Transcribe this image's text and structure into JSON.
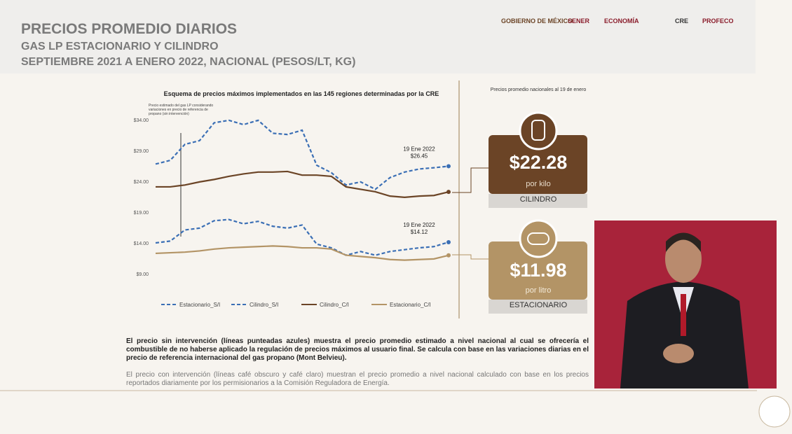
{
  "header": {
    "title": "PRECIOS PROMEDIO DIARIOS",
    "subtitle": "GAS LP ESTACIONARIO Y CILINDRO",
    "period": "SEPTIEMBRE 2021 A ENERO 2022, NACIONAL (PESOS/LT, KG)"
  },
  "logos": [
    "GOBIERNO DE MÉXICO",
    "SENER",
    "ECONOMÍA",
    "CRE",
    "PROFECO"
  ],
  "chart_data": {
    "type": "line",
    "title": "Esquema de precios máximos implementados en las 145 regiones determinadas por la CRE",
    "note": "Precio estimado del gas LP considerando variaciones en precio de referencia de propano (sin intervención)",
    "categories": [
      null,
      null,
      null,
      null,
      null,
      null,
      null,
      null,
      null,
      null,
      null,
      null,
      null,
      null,
      null,
      null,
      null,
      null,
      null,
      null,
      null
    ],
    "ylim": [
      9,
      34
    ],
    "yticks": [
      {
        "value": 9,
        "label": "$9.00"
      },
      {
        "value": 14,
        "label": "$14.00"
      },
      {
        "value": 19,
        "label": "$19.00"
      },
      {
        "value": 24,
        "label": "$24.00"
      },
      {
        "value": 29,
        "label": "$29.00"
      },
      {
        "value": 34,
        "label": "$34.00"
      }
    ],
    "series": [
      {
        "name": "Estacionario_S/I",
        "color": "#3b6fb5",
        "dashed": true,
        "values": [
          14.0,
          14.3,
          16.1,
          16.4,
          17.6,
          17.8,
          17.1,
          17.5,
          16.7,
          16.4,
          16.9,
          13.8,
          13.2,
          12.0,
          12.6,
          12.0,
          12.6,
          12.9,
          13.2,
          13.4,
          14.12
        ],
        "annotation": [
          "19 Ene 2022",
          "$14.12"
        ]
      },
      {
        "name": "Cilindro_S/I",
        "color": "#3b6fb5",
        "dashed": true,
        "values": [
          26.8,
          27.4,
          30.0,
          30.6,
          33.5,
          33.9,
          33.2,
          33.9,
          31.8,
          31.6,
          32.3,
          26.6,
          25.4,
          23.4,
          23.9,
          22.7,
          24.6,
          25.5,
          26.0,
          26.2,
          26.45
        ],
        "annotation": [
          "19 Ene 2022",
          "$26.45"
        ]
      },
      {
        "name": "Cilindro_C/I",
        "color": "#6b4426",
        "dashed": false,
        "values": [
          23.1,
          23.1,
          23.4,
          23.9,
          24.3,
          24.8,
          25.2,
          25.5,
          25.5,
          25.6,
          25.0,
          25.0,
          24.8,
          23.1,
          22.7,
          22.3,
          21.6,
          21.4,
          21.6,
          21.7,
          22.28
        ]
      },
      {
        "name": "Estacionario_C/I",
        "color": "#b39466",
        "dashed": false,
        "values": [
          12.3,
          12.4,
          12.5,
          12.7,
          13.0,
          13.2,
          13.3,
          13.4,
          13.5,
          13.4,
          13.2,
          13.2,
          13.0,
          12.0,
          11.8,
          11.6,
          11.3,
          11.2,
          11.3,
          11.4,
          11.98
        ]
      }
    ]
  },
  "summary": {
    "heading": "Precios promedio nacionales al 19 de enero",
    "boxes": [
      {
        "price": "$22.28",
        "unit": "por kilo",
        "label": "CILINDRO"
      },
      {
        "price": "$11.98",
        "unit": "por litro",
        "label": "ESTACIONARIO"
      }
    ]
  },
  "notes": [
    "El precio sin intervención (líneas punteadas azules) muestra el precio promedio estimado a nivel nacional al cual se ofrecería el combustible de no haberse aplicado la regulación de precios máximos al usuario final. Se calcula con base en las variaciones diarias en el precio de referencia internacional del gas propano (Mont Belvieu).",
    "El precio con intervención (líneas café obscuro y café claro) muestran el precio promedio a nivel nacional calculado con base en los precios reportados diariamente por los permisionarios a la Comisión Reguladora de Energía."
  ]
}
